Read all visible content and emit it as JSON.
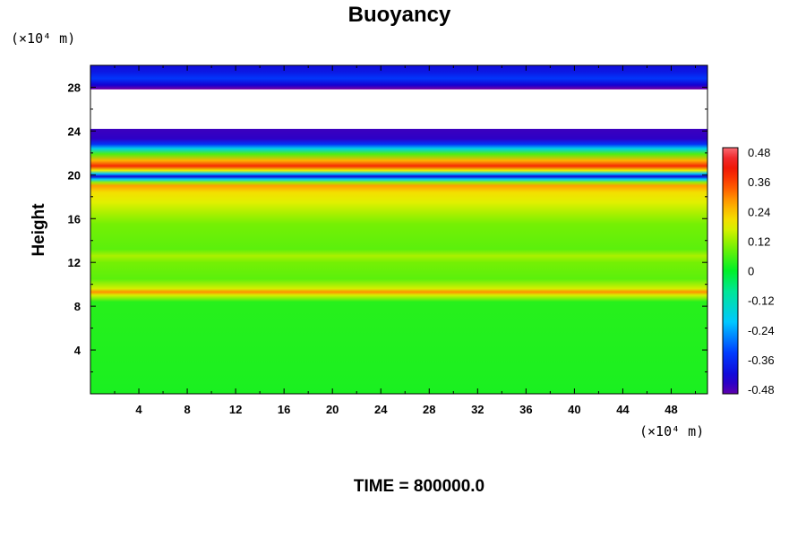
{
  "chart_data": {
    "type": "heatmap",
    "title": "Buoyancy",
    "ylabel": "Height",
    "y_unit": "(×10⁴ m)",
    "x_unit": "(×10⁴ m)",
    "footer": "TIME = 800000.0",
    "xlim": [
      0,
      51
    ],
    "ylim": [
      0,
      30
    ],
    "x_ticks": [
      "4",
      "8",
      "12",
      "16",
      "20",
      "24",
      "28",
      "32",
      "36",
      "40",
      "44",
      "48"
    ],
    "y_ticks": [
      "4",
      "8",
      "12",
      "16",
      "20",
      "24",
      "28"
    ],
    "colorbar": {
      "range": [
        -0.48,
        0.48
      ],
      "ticks": [
        "0.48",
        "0.36",
        "0.24",
        "0.12",
        "0",
        "-0.12",
        "-0.24",
        "-0.36",
        "-0.48"
      ]
    },
    "field": {
      "description_free": true,
      "blank_band": [
        24.2,
        27.8
      ],
      "height_profile": [
        {
          "y": 0,
          "v": 0.02
        },
        {
          "y": 8.4,
          "v": 0.03
        },
        {
          "y": 9.0,
          "v": 0.16
        },
        {
          "y": 9.3,
          "v": 0.28
        },
        {
          "y": 9.6,
          "v": 0.16
        },
        {
          "y": 10.5,
          "v": 0.07
        },
        {
          "y": 12.0,
          "v": 0.09
        },
        {
          "y": 12.6,
          "v": 0.13
        },
        {
          "y": 13.2,
          "v": 0.07
        },
        {
          "y": 15.5,
          "v": 0.09
        },
        {
          "y": 16.5,
          "v": 0.13
        },
        {
          "y": 17.5,
          "v": 0.17
        },
        {
          "y": 18.4,
          "v": 0.2
        },
        {
          "y": 19.0,
          "v": 0.27
        },
        {
          "y": 19.3,
          "v": 0.12
        },
        {
          "y": 19.6,
          "v": -0.2
        },
        {
          "y": 19.85,
          "v": -0.42
        },
        {
          "y": 20.1,
          "v": -0.2
        },
        {
          "y": 20.4,
          "v": 0.18
        },
        {
          "y": 20.8,
          "v": 0.38
        },
        {
          "y": 21.3,
          "v": 0.25
        },
        {
          "y": 21.9,
          "v": 0.06
        },
        {
          "y": 22.4,
          "v": -0.18
        },
        {
          "y": 22.8,
          "v": -0.34
        },
        {
          "y": 23.3,
          "v": -0.44
        },
        {
          "y": 27.8,
          "v": -0.5
        },
        {
          "y": 28.2,
          "v": -0.42
        },
        {
          "y": 28.8,
          "v": -0.33
        },
        {
          "y": 29.4,
          "v": -0.38
        },
        {
          "y": 30.0,
          "v": -0.4
        }
      ]
    }
  }
}
